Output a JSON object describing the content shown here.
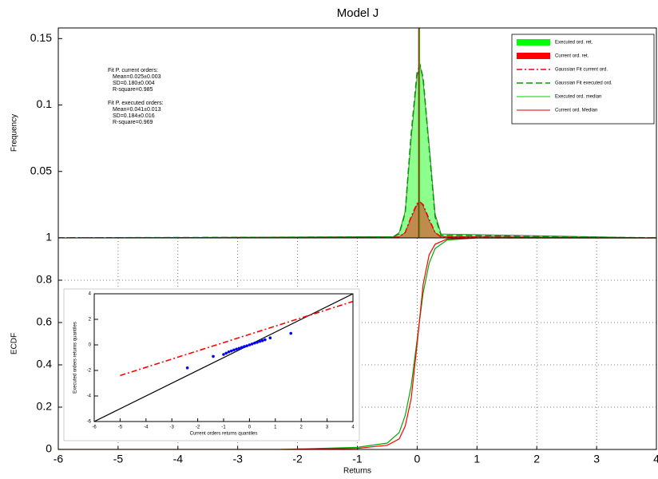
{
  "chart_data": [
    {
      "type": "line",
      "title": "Model J",
      "ylabel": "Frequency",
      "xlim": [
        -6,
        4
      ],
      "ylim": [
        0,
        0.158
      ],
      "yticks": [
        0.05,
        0.1,
        0.15
      ],
      "grid": false,
      "legend": "upper right",
      "annotations": [
        {
          "lines": [
            "Fit P. current orders:",
            "Mean=0.025±0.003",
            "SD=0.180±0.004",
            "R-square=0.985"
          ]
        },
        {
          "lines": [
            "Fit P. executed orders:",
            "Mean=0.041±0.013",
            "SD=0.184±0.016",
            "R-square=0.969"
          ]
        }
      ],
      "x": [
        -6,
        -0.4,
        -0.3,
        -0.2,
        -0.1,
        0,
        0.05,
        0.1,
        0.2,
        0.3,
        0.4,
        4
      ],
      "series": [
        {
          "name": "Executed ord. ret.",
          "color": "#00ff00",
          "style": "area",
          "values": [
            0,
            0.001,
            0.004,
            0.02,
            0.075,
            0.122,
            0.13,
            0.118,
            0.07,
            0.018,
            0.003,
            0
          ]
        },
        {
          "name": "Current ord. ret.",
          "color": "#ff0000",
          "style": "area",
          "values": [
            0,
            0.0005,
            0.001,
            0.004,
            0.015,
            0.025,
            0.027,
            0.024,
            0.013,
            0.004,
            0.001,
            0
          ]
        },
        {
          "name": "Gaussian Fit current ord.",
          "color": "#ff0000",
          "style": "dashdot",
          "values": [
            0,
            0.0003,
            0.0008,
            0.004,
            0.016,
            0.026,
            0.027,
            0.025,
            0.014,
            0.004,
            0.0008,
            0
          ]
        },
        {
          "name": "Gaussian Fit executed ord.",
          "color": "#009900",
          "style": "dashed",
          "values": [
            0,
            0.0007,
            0.003,
            0.019,
            0.078,
            0.125,
            0.13,
            0.12,
            0.068,
            0.016,
            0.002,
            0
          ]
        },
        {
          "name": "Executed ord. median",
          "color": "#00cc00",
          "style": "solid",
          "x": [
            0.041,
            0.041
          ],
          "values": [
            0,
            0.158
          ]
        },
        {
          "name": "Current ord. Median",
          "color": "#cc0000",
          "style": "solid",
          "x": [
            0.025,
            0.025
          ],
          "values": [
            0,
            0.158
          ]
        }
      ]
    },
    {
      "type": "line",
      "ylabel": "ECDF",
      "xlabel": "Returns",
      "xlim": [
        -6,
        4
      ],
      "ylim": [
        0,
        1
      ],
      "xticks": [
        -6,
        -5,
        -4,
        -3,
        -2,
        -1,
        0,
        1,
        2,
        3,
        4
      ],
      "yticks": [
        0,
        0.2,
        0.4,
        0.6,
        0.8,
        1
      ],
      "grid": true,
      "x": [
        -6,
        -2.3,
        -1,
        -0.5,
        -0.3,
        -0.2,
        -0.1,
        0,
        0.1,
        0.2,
        0.3,
        0.5,
        1,
        4
      ],
      "series": [
        {
          "color": "#00aa00",
          "style": "solid",
          "values": [
            0,
            0,
            0.01,
            0.03,
            0.08,
            0.16,
            0.3,
            0.52,
            0.74,
            0.88,
            0.95,
            0.99,
            1,
            1
          ]
        },
        {
          "color": "#ff0000",
          "style": "solid",
          "values": [
            0,
            0,
            0.005,
            0.02,
            0.05,
            0.11,
            0.24,
            0.5,
            0.78,
            0.92,
            0.97,
            0.995,
            1,
            1
          ]
        }
      ]
    },
    {
      "type": "scatter",
      "xlabel": "Current orders returns quantiles",
      "ylabel": "Executed orders returns quantiles",
      "xlim": [
        -6,
        4
      ],
      "ylim": [
        -6,
        4
      ],
      "xticks": [
        -6,
        -5,
        -4,
        -3,
        -2,
        -1,
        0,
        1,
        2,
        3,
        4
      ],
      "yticks": [
        -6,
        -4,
        -2,
        0,
        2,
        4
      ],
      "grid": false,
      "series": [
        {
          "color": "#000000",
          "style": "solid",
          "x": [
            -6,
            4
          ],
          "values": [
            -6,
            4
          ]
        },
        {
          "color": "#ff0000",
          "style": "dashdot",
          "x": [
            -5,
            4
          ],
          "values": [
            -2.4,
            3.4
          ]
        },
        {
          "color": "#0000ff",
          "style": "markers",
          "x": [
            -2.4,
            -1.4,
            -1.0,
            -0.9,
            -0.8,
            -0.7,
            -0.6,
            -0.5,
            -0.4,
            -0.3,
            -0.2,
            -0.1,
            0,
            0.1,
            0.2,
            0.3,
            0.4,
            0.5,
            0.6,
            0.8,
            1.6
          ],
          "values": [
            -1.8,
            -0.9,
            -0.75,
            -0.65,
            -0.55,
            -0.48,
            -0.4,
            -0.33,
            -0.27,
            -0.2,
            -0.13,
            -0.07,
            0,
            0.07,
            0.14,
            0.2,
            0.27,
            0.33,
            0.4,
            0.55,
            0.9
          ]
        }
      ]
    }
  ]
}
